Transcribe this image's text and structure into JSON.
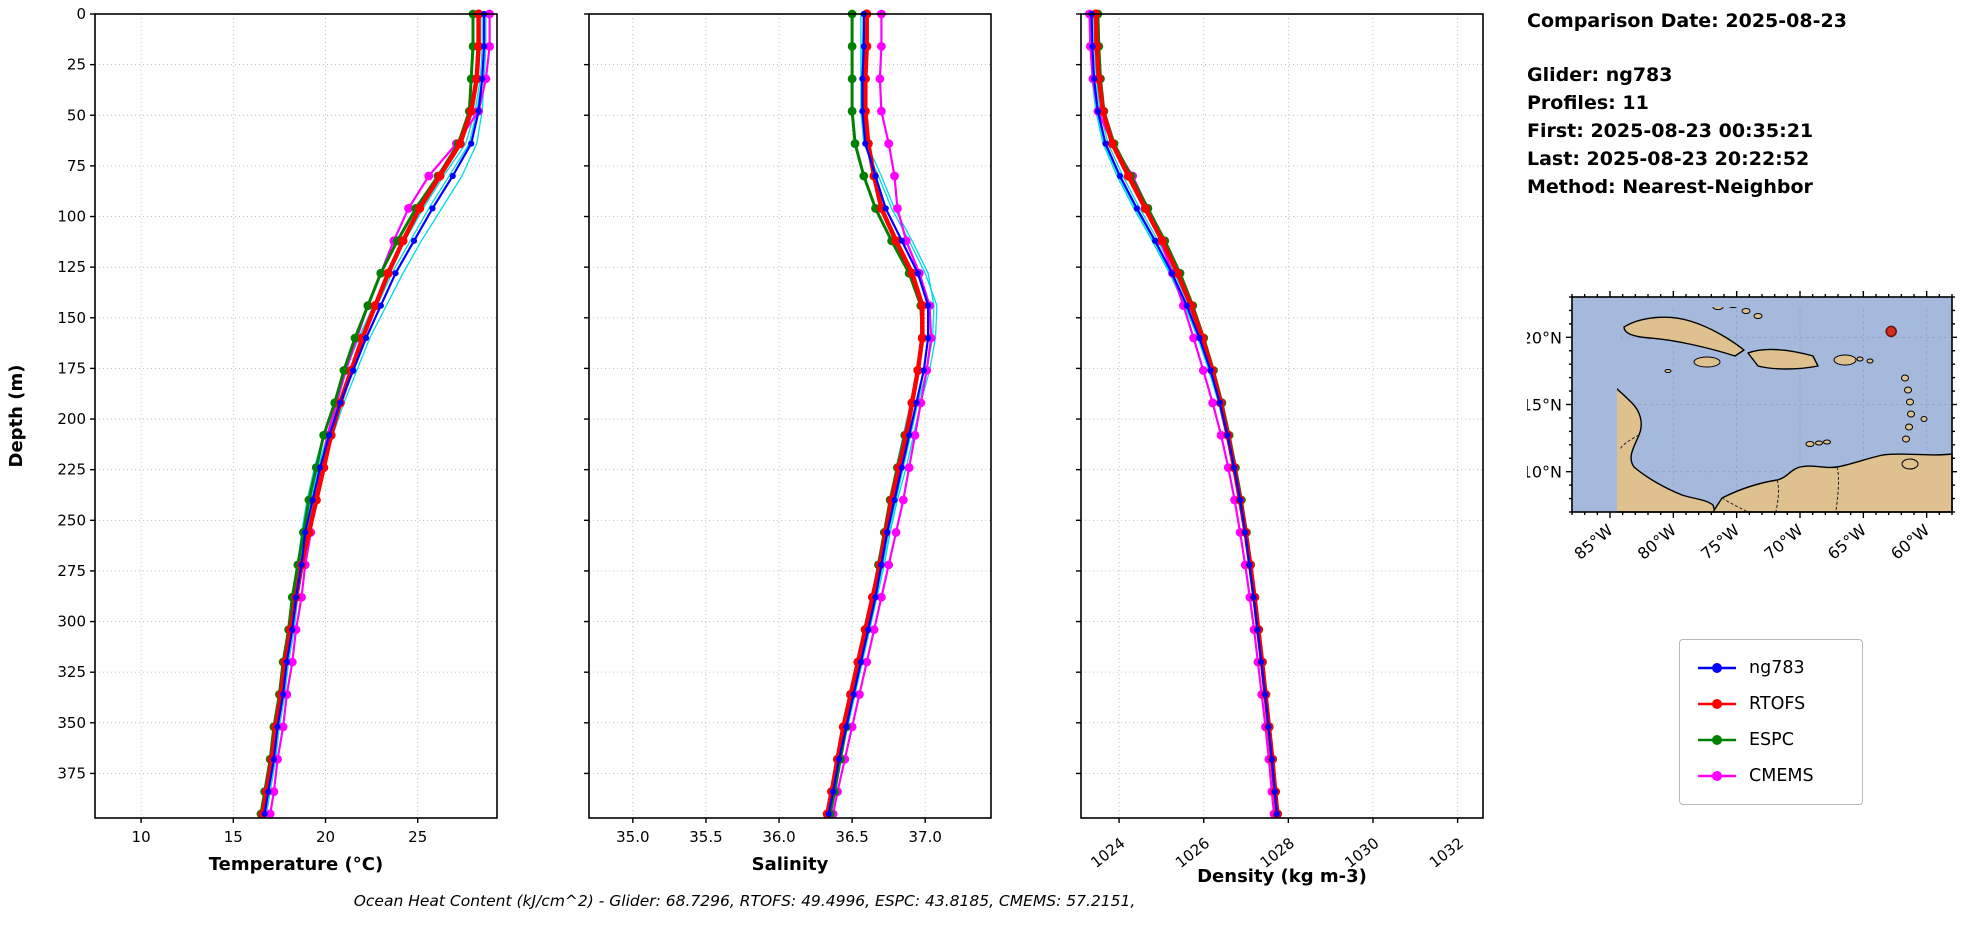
{
  "info": {
    "comparison_date": "Comparison Date: 2025-08-23",
    "glider": "Glider: ng783",
    "profiles": "Profiles: 11",
    "first": "First: 2025-08-23 00:35:21",
    "last": "Last: 2025-08-23 20:22:52",
    "method": "Method: Nearest-Neighbor"
  },
  "footer": "Ocean Heat Content (kJ/cm^2) - Glider: 68.7296,  RTOFS: 49.4996,  ESPC: 43.8185,  CMEMS: 57.2151,",
  "legend": [
    {
      "label": "ng783",
      "color": "#0000ff"
    },
    {
      "label": "RTOFS",
      "color": "#ff0000"
    },
    {
      "label": "ESPC",
      "color": "#008000"
    },
    {
      "label": "CMEMS",
      "color": "#ff00ff"
    }
  ],
  "series_styles": {
    "ng783": {
      "color": "#0000ff",
      "lw": 2.2,
      "r": 3.1
    },
    "RTOFS": {
      "color": "#ff0000",
      "lw": 4.5,
      "r": 4.6
    },
    "ESPC": {
      "color": "#008000",
      "lw": 3.0,
      "r": 4.4
    },
    "CMEMS": {
      "color": "#ff00ff",
      "lw": 2.2,
      "r": 4.4
    },
    "profile": {
      "color": "#00d9e6",
      "lw": 1.3,
      "r": 0
    }
  },
  "map": {
    "lat_ticks": [
      {
        "label": "20°N",
        "f": 0.1875
      },
      {
        "label": "15°N",
        "f": 0.5
      },
      {
        "label": "10°N",
        "f": 0.8125
      }
    ],
    "lon_ticks": [
      {
        "label": "85°W",
        "f": 0.1
      },
      {
        "label": "80°W",
        "f": 0.2667
      },
      {
        "label": "75°W",
        "f": 0.4333
      },
      {
        "label": "70°W",
        "f": 0.6
      },
      {
        "label": "65°W",
        "f": 0.7667
      },
      {
        "label": "60°W",
        "f": 0.9333
      }
    ],
    "marker": {
      "fx": 0.84,
      "fy": 0.16
    },
    "colors": {
      "ocean": "#a4b9dc",
      "land": "#dec18f",
      "coast": "#000000",
      "marker": "#d62d20"
    }
  },
  "chart_data": [
    {
      "type": "line",
      "name": "temperature",
      "xlabel": "Temperature (°C)",
      "ylabel": "Depth (m)",
      "show_depth_labels": true,
      "xlim": [
        7.5,
        29.3
      ],
      "ylim": [
        0,
        397
      ],
      "x_tick_rotate": 0,
      "x_ticks": [
        {
          "v": 10,
          "l": "10"
        },
        {
          "v": 15,
          "l": "15"
        },
        {
          "v": 20,
          "l": "20"
        },
        {
          "v": 25,
          "l": "25"
        }
      ],
      "y_ticks": [
        0,
        25,
        50,
        75,
        100,
        125,
        150,
        175,
        200,
        225,
        250,
        275,
        300,
        325,
        350,
        375
      ],
      "depths": [
        0,
        16,
        32,
        48,
        64,
        80,
        96,
        112,
        128,
        144,
        160,
        176,
        192,
        208,
        224,
        240,
        256,
        272,
        288,
        304,
        320,
        336,
        352,
        368,
        384,
        395
      ],
      "series": [
        {
          "name": "profile-1",
          "values": [
            28.7,
            28.7,
            28.6,
            28.5,
            28.2,
            27.4,
            26.3,
            25.2,
            24.2,
            23.3,
            22.4,
            21.7,
            21.0,
            20.4,
            19.9,
            19.4,
            19.0,
            18.8,
            18.5,
            18.3,
            18.0,
            17.8,
            17.5,
            17.3,
            17.0,
            16.8
          ]
        },
        {
          "name": "profile-2",
          "values": [
            28.5,
            28.5,
            28.4,
            28.1,
            27.6,
            26.4,
            25.3,
            24.3,
            23.4,
            22.6,
            21.8,
            21.1,
            20.5,
            19.9,
            19.4,
            19.0,
            18.7,
            18.5,
            18.2,
            18.0,
            17.7,
            17.5,
            17.2,
            17.0,
            16.7,
            16.5
          ]
        },
        {
          "name": "profile-3",
          "values": [
            28.6,
            28.6,
            28.5,
            28.2,
            27.8,
            26.7,
            25.6,
            24.6,
            23.6,
            22.8,
            22.0,
            21.3,
            20.7,
            20.1,
            19.6,
            19.2,
            18.8,
            18.6,
            18.3,
            18.1,
            17.8,
            17.6,
            17.3,
            17.1,
            16.8,
            16.6
          ]
        },
        {
          "name": "CMEMS",
          "values": [
            28.9,
            28.9,
            28.7,
            28.3,
            27.1,
            25.6,
            24.5,
            23.7,
            23.0,
            22.3,
            21.7,
            21.1,
            20.6,
            20.1,
            19.8,
            19.4,
            19.2,
            18.9,
            18.7,
            18.4,
            18.2,
            17.9,
            17.7,
            17.4,
            17.2,
            17.0
          ]
        },
        {
          "name": "ESPC",
          "values": [
            28.0,
            28.0,
            27.9,
            27.8,
            27.2,
            26.1,
            24.9,
            23.9,
            23.0,
            22.3,
            21.6,
            21.0,
            20.5,
            19.9,
            19.5,
            19.1,
            18.8,
            18.5,
            18.2,
            18.0,
            17.7,
            17.5,
            17.2,
            17.0,
            16.7,
            16.5
          ]
        },
        {
          "name": "RTOFS",
          "values": [
            28.3,
            28.3,
            28.2,
            27.9,
            27.3,
            26.2,
            25.1,
            24.2,
            23.4,
            22.7,
            22.0,
            21.4,
            20.8,
            20.3,
            19.9,
            19.5,
            19.1,
            18.7,
            18.4,
            18.1,
            17.8,
            17.6,
            17.3,
            17.1,
            16.8,
            16.6
          ]
        },
        {
          "name": "ng783",
          "values": [
            28.6,
            28.6,
            28.5,
            28.3,
            27.9,
            26.9,
            25.8,
            24.8,
            23.8,
            23.0,
            22.2,
            21.5,
            20.8,
            20.2,
            19.7,
            19.3,
            18.9,
            18.7,
            18.4,
            18.2,
            17.9,
            17.7,
            17.4,
            17.2,
            16.9,
            16.7
          ]
        }
      ]
    },
    {
      "type": "line",
      "name": "salinity",
      "xlabel": "Salinity",
      "ylabel": null,
      "show_depth_labels": false,
      "xlim": [
        34.7,
        37.45
      ],
      "ylim": [
        0,
        397
      ],
      "x_tick_rotate": 0,
      "x_ticks": [
        {
          "v": 35.0,
          "l": "35.0"
        },
        {
          "v": 35.5,
          "l": "35.5"
        },
        {
          "v": 36.0,
          "l": "36.0"
        },
        {
          "v": 36.5,
          "l": "36.5"
        },
        {
          "v": 37.0,
          "l": "37.0"
        }
      ],
      "y_ticks": [
        0,
        25,
        50,
        75,
        100,
        125,
        150,
        175,
        200,
        225,
        250,
        275,
        300,
        325,
        350,
        375
      ],
      "depths": [
        0,
        16,
        32,
        48,
        64,
        80,
        96,
        112,
        128,
        144,
        160,
        176,
        192,
        208,
        224,
        240,
        256,
        272,
        288,
        304,
        320,
        336,
        352,
        368,
        384,
        395
      ],
      "series": [
        {
          "name": "profile-1",
          "values": [
            36.56,
            36.56,
            36.56,
            36.56,
            36.58,
            36.68,
            36.77,
            36.89,
            37.0,
            37.08,
            37.07,
            37.03,
            36.97,
            36.92,
            36.87,
            36.81,
            36.76,
            36.72,
            36.67,
            36.62,
            36.57,
            36.52,
            36.47,
            36.42,
            36.38,
            36.35
          ]
        },
        {
          "name": "profile-2",
          "values": [
            36.6,
            36.6,
            36.59,
            36.58,
            36.6,
            36.64,
            36.7,
            36.79,
            36.9,
            36.97,
            36.98,
            36.95,
            36.9,
            36.85,
            36.8,
            36.76,
            36.72,
            36.68,
            36.63,
            36.58,
            36.53,
            36.48,
            36.44,
            36.4,
            36.36,
            36.33
          ]
        },
        {
          "name": "profile-3",
          "values": [
            36.58,
            36.57,
            36.57,
            36.57,
            36.6,
            36.7,
            36.79,
            36.91,
            37.02,
            37.06,
            37.05,
            37.01,
            36.95,
            36.9,
            36.85,
            36.8,
            36.75,
            36.71,
            36.66,
            36.61,
            36.56,
            36.51,
            36.46,
            36.42,
            36.38,
            36.35
          ]
        },
        {
          "name": "CMEMS",
          "values": [
            36.7,
            36.7,
            36.69,
            36.7,
            36.75,
            36.79,
            36.81,
            36.87,
            36.96,
            37.03,
            37.04,
            37.01,
            36.97,
            36.93,
            36.89,
            36.85,
            36.8,
            36.75,
            36.7,
            36.65,
            36.6,
            36.55,
            36.5,
            36.45,
            36.4,
            36.37
          ]
        },
        {
          "name": "ESPC",
          "values": [
            36.5,
            36.5,
            36.5,
            36.5,
            36.52,
            36.58,
            36.66,
            36.77,
            36.89,
            36.97,
            36.98,
            36.95,
            36.91,
            36.86,
            36.81,
            36.76,
            36.72,
            36.68,
            36.64,
            36.6,
            36.55,
            36.5,
            36.46,
            36.42,
            36.38,
            36.35
          ]
        },
        {
          "name": "RTOFS",
          "values": [
            36.6,
            36.6,
            36.59,
            36.59,
            36.61,
            36.65,
            36.7,
            36.8,
            36.91,
            36.98,
            36.98,
            36.95,
            36.91,
            36.87,
            36.82,
            36.77,
            36.73,
            36.69,
            36.64,
            36.59,
            36.54,
            36.49,
            36.44,
            36.4,
            36.36,
            36.33
          ]
        },
        {
          "name": "ng783",
          "values": [
            36.58,
            36.58,
            36.57,
            36.57,
            36.59,
            36.66,
            36.73,
            36.84,
            36.95,
            37.02,
            37.02,
            36.99,
            36.94,
            36.89,
            36.84,
            36.79,
            36.74,
            36.7,
            36.66,
            36.61,
            36.56,
            36.51,
            36.46,
            36.41,
            36.37,
            36.34
          ]
        }
      ]
    },
    {
      "type": "line",
      "name": "density",
      "xlabel": "Density (kg m-3)",
      "ylabel": null,
      "show_depth_labels": false,
      "xlim": [
        1023.1,
        1032.6
      ],
      "ylim": [
        0,
        397
      ],
      "x_tick_rotate": -38,
      "x_ticks": [
        {
          "v": 1024,
          "l": "1024"
        },
        {
          "v": 1026,
          "l": "1026"
        },
        {
          "v": 1028,
          "l": "1028"
        },
        {
          "v": 1030,
          "l": "1030"
        },
        {
          "v": 1032,
          "l": "1032"
        }
      ],
      "y_ticks": [
        0,
        25,
        50,
        75,
        100,
        125,
        150,
        175,
        200,
        225,
        250,
        275,
        300,
        325,
        350,
        375
      ],
      "depths": [
        0,
        16,
        32,
        48,
        64,
        80,
        96,
        112,
        128,
        144,
        160,
        176,
        192,
        208,
        224,
        240,
        256,
        272,
        288,
        304,
        320,
        336,
        352,
        368,
        384,
        395
      ],
      "series": [
        {
          "name": "profile-1",
          "values": [
            1023.3,
            1023.32,
            1023.36,
            1023.45,
            1023.62,
            1023.95,
            1024.35,
            1024.78,
            1025.19,
            1025.55,
            1025.86,
            1026.12,
            1026.35,
            1026.53,
            1026.7,
            1026.84,
            1026.96,
            1027.06,
            1027.16,
            1027.25,
            1027.34,
            1027.43,
            1027.51,
            1027.59,
            1027.66,
            1027.71
          ]
        },
        {
          "name": "profile-2",
          "values": [
            1023.4,
            1023.42,
            1023.46,
            1023.55,
            1023.74,
            1024.09,
            1024.49,
            1024.92,
            1025.31,
            1025.65,
            1025.94,
            1026.2,
            1026.41,
            1026.59,
            1026.74,
            1026.88,
            1027.0,
            1027.1,
            1027.2,
            1027.29,
            1027.38,
            1027.47,
            1027.55,
            1027.63,
            1027.7,
            1027.75
          ]
        },
        {
          "name": "profile-3",
          "values": [
            1023.33,
            1023.35,
            1023.39,
            1023.48,
            1023.65,
            1023.99,
            1024.39,
            1024.82,
            1025.22,
            1025.57,
            1025.88,
            1026.14,
            1026.36,
            1026.54,
            1026.71,
            1026.85,
            1026.97,
            1027.07,
            1027.17,
            1027.26,
            1027.35,
            1027.44,
            1027.52,
            1027.6,
            1027.67,
            1027.72
          ]
        },
        {
          "name": "CMEMS",
          "values": [
            1023.3,
            1023.32,
            1023.38,
            1023.5,
            1023.85,
            1024.32,
            1024.68,
            1024.98,
            1025.26,
            1025.52,
            1025.76,
            1025.99,
            1026.21,
            1026.41,
            1026.58,
            1026.73,
            1026.86,
            1026.98,
            1027.09,
            1027.19,
            1027.28,
            1027.37,
            1027.46,
            1027.54,
            1027.61,
            1027.66
          ]
        },
        {
          "name": "ESPC",
          "values": [
            1023.5,
            1023.52,
            1023.56,
            1023.64,
            1023.88,
            1024.28,
            1024.68,
            1025.08,
            1025.44,
            1025.74,
            1026.0,
            1026.23,
            1026.43,
            1026.6,
            1026.75,
            1026.89,
            1027.01,
            1027.11,
            1027.21,
            1027.3,
            1027.39,
            1027.47,
            1027.55,
            1027.63,
            1027.7,
            1027.75
          ]
        },
        {
          "name": "RTOFS",
          "values": [
            1023.45,
            1023.47,
            1023.52,
            1023.62,
            1023.84,
            1024.22,
            1024.62,
            1025.02,
            1025.38,
            1025.7,
            1025.97,
            1026.2,
            1026.4,
            1026.57,
            1026.72,
            1026.86,
            1026.99,
            1027.1,
            1027.2,
            1027.29,
            1027.38,
            1027.46,
            1027.54,
            1027.62,
            1027.69,
            1027.74
          ]
        },
        {
          "name": "ng783",
          "values": [
            1023.35,
            1023.37,
            1023.41,
            1023.5,
            1023.68,
            1024.02,
            1024.42,
            1024.85,
            1025.25,
            1025.6,
            1025.9,
            1026.16,
            1026.38,
            1026.56,
            1026.72,
            1026.86,
            1026.98,
            1027.08,
            1027.18,
            1027.27,
            1027.36,
            1027.45,
            1027.53,
            1027.61,
            1027.68,
            1027.73
          ]
        }
      ]
    }
  ]
}
